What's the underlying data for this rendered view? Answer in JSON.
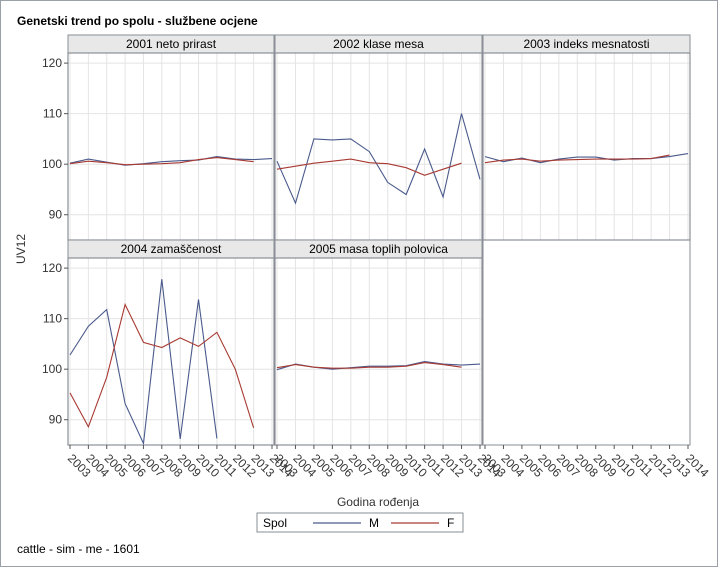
{
  "title": "Genetski trend po spolu - službene ocjene",
  "footnote": "cattle - sim - me - 1601",
  "colors": {
    "M": "#4a5a8c",
    "F": "#a83a32",
    "grid": "#e4e4e4",
    "frame": "#8a8f96",
    "header_bg": "#e8e8e8"
  },
  "chart_data": {
    "type": "line",
    "xlabel": "Godina rođenja",
    "ylabel": "UV12",
    "ylim": [
      85,
      122
    ],
    "yticks": [
      90,
      100,
      110,
      120
    ],
    "x": [
      2003,
      2004,
      2005,
      2006,
      2007,
      2008,
      2009,
      2010,
      2011,
      2012,
      2013,
      2014
    ],
    "legend": {
      "title": "Spol",
      "position": "bottom",
      "entries": [
        "M",
        "F"
      ]
    },
    "panels": [
      {
        "title": "2001 neto prirast",
        "series": [
          {
            "name": "M",
            "values": [
              100.2,
              101.0,
              100.4,
              99.8,
              100.1,
              100.5,
              100.7,
              100.8,
              101.5,
              101.0,
              100.9,
              101.1
            ]
          },
          {
            "name": "F",
            "values": [
              100.1,
              100.6,
              100.3,
              99.9,
              100.0,
              100.1,
              100.3,
              100.9,
              101.3,
              100.9,
              100.5,
              null
            ]
          }
        ]
      },
      {
        "title": "2002 klase mesa",
        "series": [
          {
            "name": "M",
            "values": [
              100.6,
              92.3,
              105.0,
              104.8,
              105.0,
              102.5,
              96.4,
              94.0,
              103.0,
              93.5,
              110.0,
              97.0
            ]
          },
          {
            "name": "F",
            "values": [
              99.0,
              99.6,
              100.2,
              100.6,
              101.0,
              100.3,
              100.1,
              99.3,
              97.8,
              99.0,
              100.2,
              null
            ]
          }
        ]
      },
      {
        "title": "2003 indeks mesnatosti",
        "series": [
          {
            "name": "M",
            "values": [
              101.5,
              100.5,
              101.2,
              100.3,
              101.0,
              101.4,
              101.4,
              100.8,
              101.1,
              101.1,
              101.5,
              102.1
            ]
          },
          {
            "name": "F",
            "values": [
              100.3,
              100.8,
              101.0,
              100.6,
              100.8,
              100.9,
              101.0,
              101.0,
              101.0,
              101.1,
              101.8,
              null
            ]
          }
        ]
      },
      {
        "title": "2004 zamaščenost",
        "series": [
          {
            "name": "M",
            "values": [
              102.8,
              108.5,
              111.8,
              93.2,
              85.3,
              117.8,
              86.2,
              113.8,
              86.3,
              null,
              null,
              null
            ]
          },
          {
            "name": "F",
            "values": [
              95.3,
              88.6,
              98.4,
              112.8,
              105.3,
              104.3,
              106.2,
              104.5,
              107.3,
              100.0,
              88.4,
              null
            ]
          }
        ]
      },
      {
        "title": "2005 masa toplih polovica",
        "series": [
          {
            "name": "M",
            "values": [
              99.9,
              101.0,
              100.4,
              100.0,
              100.3,
              100.6,
              100.6,
              100.7,
              101.5,
              101.0,
              100.8,
              101.0
            ]
          },
          {
            "name": "F",
            "values": [
              100.3,
              100.9,
              100.4,
              100.2,
              100.2,
              100.4,
              100.4,
              100.6,
              101.3,
              100.9,
              100.4,
              null
            ]
          }
        ]
      }
    ]
  }
}
